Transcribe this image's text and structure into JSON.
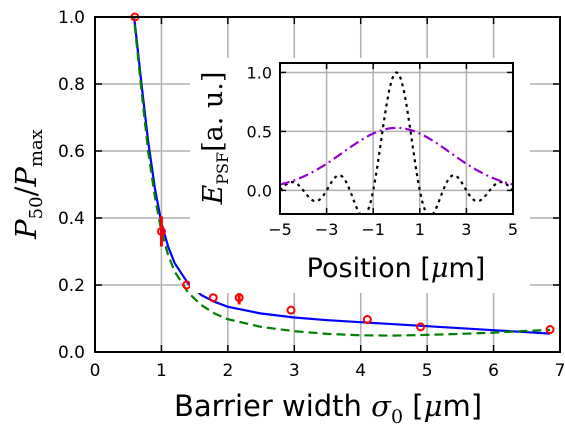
{
  "chart_data": [
    {
      "type": "line",
      "xlabel": {
        "text": "Barrier width ",
        "symbol": "σ",
        "sub": "0",
        "unit_open": " [",
        "unit": "μ",
        "unit_rest": "m]"
      },
      "ylabel": {
        "p": "P",
        "sub1": "50",
        "slash": "/",
        "p2": "P",
        "sub2": "max"
      },
      "xlim": [
        0,
        7
      ],
      "ylim": [
        0,
        1.0
      ],
      "xticks": [
        "0",
        "1",
        "2",
        "3",
        "4",
        "5",
        "6",
        "7"
      ],
      "yticks": [
        "0.0",
        "0.2",
        "0.4",
        "0.6",
        "0.8",
        "1.0"
      ],
      "grid": true,
      "series": [
        {
          "style": "solid",
          "color": "#0000ff",
          "x": [
            0.55,
            0.6,
            0.7,
            0.8,
            0.9,
            1.0,
            1.1,
            1.2,
            1.4,
            1.6,
            1.8,
            2.0,
            2.5,
            3.0,
            3.5,
            4.0,
            4.5,
            5.0,
            5.5,
            6.0,
            6.5,
            6.85
          ],
          "y": [
            1.06,
            0.98,
            0.8,
            0.63,
            0.49,
            0.385,
            0.315,
            0.265,
            0.205,
            0.17,
            0.15,
            0.135,
            0.115,
            0.103,
            0.095,
            0.089,
            0.083,
            0.077,
            0.071,
            0.065,
            0.059,
            0.055
          ]
        },
        {
          "style": "dashed",
          "color": "#008000",
          "x": [
            0.55,
            0.6,
            0.7,
            0.8,
            0.9,
            1.0,
            1.1,
            1.2,
            1.4,
            1.6,
            1.8,
            2.0,
            2.5,
            3.0,
            3.5,
            4.0,
            4.5,
            5.0,
            5.5,
            6.0,
            6.5,
            6.85
          ],
          "y": [
            1.06,
            0.97,
            0.78,
            0.6,
            0.465,
            0.36,
            0.29,
            0.24,
            0.178,
            0.14,
            0.115,
            0.098,
            0.075,
            0.062,
            0.054,
            0.05,
            0.049,
            0.051,
            0.054,
            0.058,
            0.063,
            0.066
          ]
        },
        {
          "style": "points",
          "color": "#ff0000",
          "x": [
            0.6,
            1.0,
            1.38,
            1.78,
            2.17,
            2.95,
            4.1,
            4.9,
            6.85
          ],
          "y": [
            1.0,
            0.36,
            0.2,
            0.162,
            0.162,
            0.125,
            0.097,
            0.075,
            0.067
          ],
          "yerr": [
            0,
            0.045,
            0,
            0,
            0.02,
            0,
            0,
            0,
            0
          ]
        }
      ]
    },
    {
      "type": "line",
      "inset": true,
      "xlabel": {
        "text": "Position [",
        "unit": "μ",
        "unit_rest": "m]"
      },
      "ylabel": {
        "e": "E",
        "sub": "PSF",
        "unit": "[a. u.]"
      },
      "xlim": [
        -5,
        5
      ],
      "ylim": [
        -0.2,
        1.08
      ],
      "xticks": [
        "−5",
        "−3",
        "−1",
        "1",
        "3",
        "5"
      ],
      "yticks": [
        "0.0",
        "0.5",
        "1.0"
      ],
      "grid": true,
      "series": [
        {
          "style": "dotted",
          "color": "#000000",
          "function": "sinc2",
          "period": 2.0,
          "amplitude": 1.0
        },
        {
          "style": "dashdot",
          "color": "#9400d3",
          "function": "gaussian",
          "sigma": 2.3,
          "amplitude": 0.53
        }
      ]
    }
  ]
}
